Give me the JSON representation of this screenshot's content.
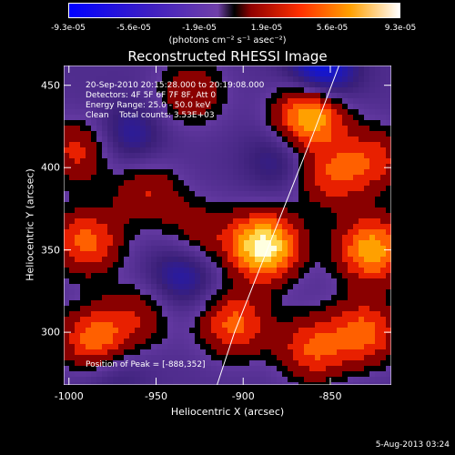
{
  "colorbar": {
    "tick_labels": [
      "-9.3e-05",
      "-5.6e-05",
      "-1.9e-05",
      "1.9e-05",
      "5.6e-05",
      "9.3e-05"
    ],
    "units_label": "(photons cm⁻² s⁻¹ asec⁻²)",
    "range": [
      -9.3e-05,
      9.3e-05
    ]
  },
  "chart_data": {
    "type": "heatmap",
    "title": "Reconstructed RHESSI Image",
    "xlabel": "Heliocentric X (arcsec)",
    "ylabel": "Heliocentric Y (arcsec)",
    "xlim": [
      -1003,
      -815
    ],
    "ylim": [
      268,
      462
    ],
    "x_ticks": [
      -1000,
      -950,
      -900,
      -850
    ],
    "y_ticks": [
      300,
      350,
      400,
      450
    ],
    "annotations": [
      "20-Sep-2010 20:15:28.000 to 20:19:08.000",
      "Detectors: 4F 5F 6F 7F 8F, Att 0",
      "Energy Range: 25.0 - 50.0 keV",
      "Clean    Total counts: 3.53E+03"
    ],
    "peak_label": "Position of Peak = [-888,352]",
    "peak": [
      -888,
      352
    ],
    "limb_curve": [
      [
        -915,
        268
      ],
      [
        -905,
        300
      ],
      [
        -890,
        340
      ],
      [
        -875,
        380
      ],
      [
        -860,
        420
      ],
      [
        -845,
        462
      ]
    ],
    "blobs": [
      {
        "x": -888,
        "y": 352,
        "v": 1.0
      },
      {
        "x": -862,
        "y": 432,
        "v": 0.85
      },
      {
        "x": -826,
        "y": 350,
        "v": 0.75
      },
      {
        "x": -905,
        "y": 305,
        "v": 0.55
      },
      {
        "x": -860,
        "y": 290,
        "v": 0.5
      },
      {
        "x": -990,
        "y": 355,
        "v": 0.55
      },
      {
        "x": -985,
        "y": 295,
        "v": 0.6
      },
      {
        "x": -995,
        "y": 410,
        "v": 0.4
      },
      {
        "x": -955,
        "y": 385,
        "v": 0.35
      },
      {
        "x": -850,
        "y": 395,
        "v": 0.45
      },
      {
        "x": -825,
        "y": 405,
        "v": 0.4
      },
      {
        "x": -930,
        "y": 445,
        "v": 0.35
      },
      {
        "x": -830,
        "y": 300,
        "v": 0.55
      },
      {
        "x": -960,
        "y": 310,
        "v": 0.3
      },
      {
        "x": -925,
        "y": 360,
        "v": 0.3
      },
      {
        "x": -965,
        "y": 420,
        "v": -0.3
      },
      {
        "x": -935,
        "y": 335,
        "v": -0.35
      },
      {
        "x": -880,
        "y": 405,
        "v": -0.25
      },
      {
        "x": -855,
        "y": 458,
        "v": -0.6
      },
      {
        "x": -975,
        "y": 275,
        "v": -0.2
      }
    ]
  },
  "footer": "5-Aug-2013 03:24"
}
